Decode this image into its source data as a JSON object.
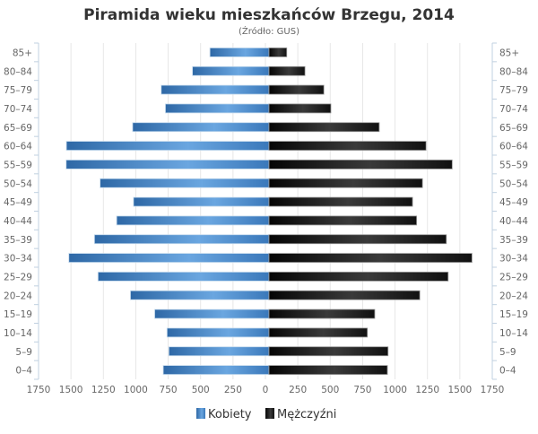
{
  "chart_data": {
    "type": "bar",
    "orientation": "horizontal-pyramid",
    "title": "Piramida wieku mieszkańców Brzegu, 2014",
    "subtitle": "(Źródło: GUS)",
    "categories": [
      "85+",
      "80–84",
      "75–79",
      "70–74",
      "65–69",
      "60–64",
      "55–59",
      "50–54",
      "45–49",
      "40–44",
      "35–39",
      "30–34",
      "25–29",
      "20–24",
      "15–19",
      "10–14",
      "5–9",
      "0–4"
    ],
    "series": [
      {
        "name": "Kobiety",
        "color": "#4a86c5",
        "side": "left",
        "values": [
          463,
          600,
          845,
          812,
          1069,
          1588,
          1590,
          1324,
          1062,
          1194,
          1368,
          1569,
          1340,
          1086,
          896,
          799,
          785,
          829
        ]
      },
      {
        "name": "Mężczyźni",
        "color": "#1a1a1a",
        "side": "right",
        "values": [
          139,
          282,
          430,
          485,
          864,
          1231,
          1436,
          1203,
          1125,
          1157,
          1390,
          1591,
          1404,
          1182,
          829,
          771,
          933,
          928
        ]
      }
    ],
    "xlim": [
      -1750,
      1750
    ],
    "x_ticks": [
      "1750",
      "1500",
      "1250",
      "1000",
      "750",
      "500",
      "250",
      "0",
      "250",
      "500",
      "750",
      "1000",
      "1250",
      "1500",
      "1750"
    ],
    "grid": true,
    "legend": "bottom"
  }
}
